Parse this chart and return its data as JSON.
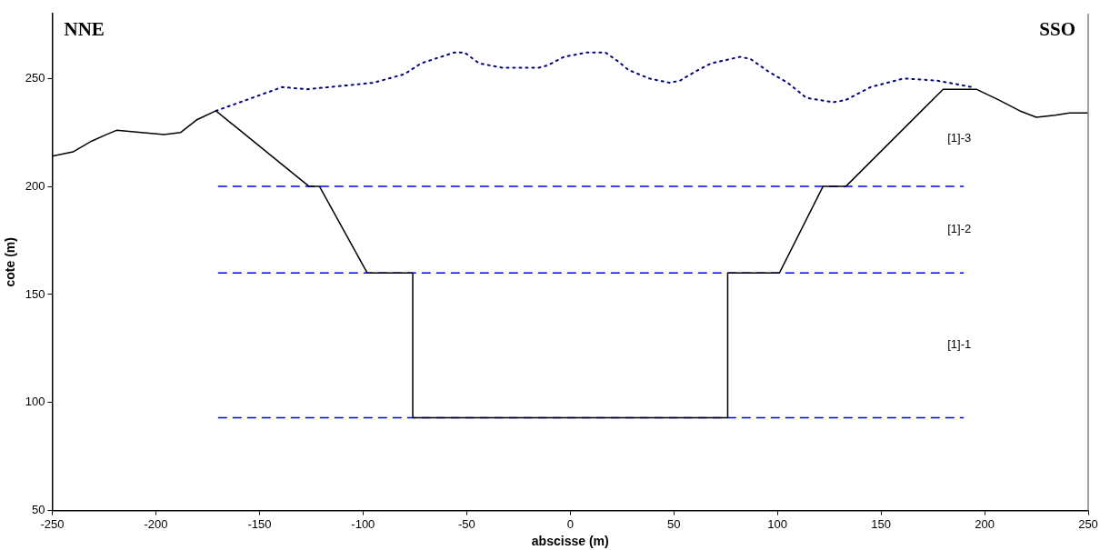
{
  "chart_data": {
    "type": "line",
    "xlabel": "abscisse (m)",
    "ylabel": "cote (m)",
    "xlim": [
      -250,
      250
    ],
    "ylim": [
      50,
      280
    ],
    "xticks": [
      -250,
      -200,
      -150,
      -100,
      -50,
      0,
      50,
      100,
      150,
      200,
      250
    ],
    "yticks": [
      50,
      100,
      150,
      200,
      250
    ],
    "grid": false,
    "legend": false,
    "marker": "none",
    "series": [
      {
        "color": "#000000",
        "line_style": "solid",
        "x": [
          -250,
          -240,
          -231,
          -224,
          -219,
          -207,
          -196,
          -188,
          -180,
          -171,
          -126,
          -121,
          -98,
          -76,
          -76,
          76,
          76,
          101,
          122,
          133,
          180,
          196,
          207,
          217,
          225,
          234,
          241,
          250
        ],
        "values": [
          214,
          216,
          221,
          224,
          226,
          225,
          224,
          225,
          231,
          235,
          200,
          200,
          160,
          160,
          93,
          93,
          160,
          160,
          200,
          200,
          245,
          245,
          240,
          235,
          232,
          233,
          234,
          234
        ]
      },
      {
        "color": "#000080",
        "line_style": "dotted",
        "x": [
          -171,
          -139,
          -127,
          -95,
          -80,
          -72,
          -56,
          -51,
          -44,
          -33,
          -15,
          -11,
          -3,
          8,
          17,
          23,
          28,
          38,
          48,
          53,
          60,
          68,
          82,
          87,
          96,
          105,
          114,
          127,
          133,
          145,
          161,
          177,
          194
        ],
        "values": [
          235,
          246,
          245,
          248,
          252,
          257,
          262,
          262,
          257,
          255,
          255,
          256,
          260,
          262,
          262,
          258,
          254,
          250,
          248,
          249,
          253,
          257,
          260,
          259,
          253,
          248,
          241,
          239,
          240,
          246,
          250,
          249,
          246
        ]
      },
      {
        "color": "#0000ff",
        "line_style": "dashed",
        "x": [
          -170,
          190
        ],
        "values": [
          200,
          200
        ]
      },
      {
        "color": "#0000ff",
        "line_style": "dashed",
        "x": [
          -170,
          190
        ],
        "values": [
          160,
          160
        ]
      },
      {
        "color": "#0000ff",
        "line_style": "dashed",
        "x": [
          -170,
          190
        ],
        "values": [
          93,
          93
        ]
      }
    ],
    "annotations": [
      "NNE",
      "SSO",
      "[1]-3",
      "[1]-2",
      "[1]-1"
    ]
  }
}
